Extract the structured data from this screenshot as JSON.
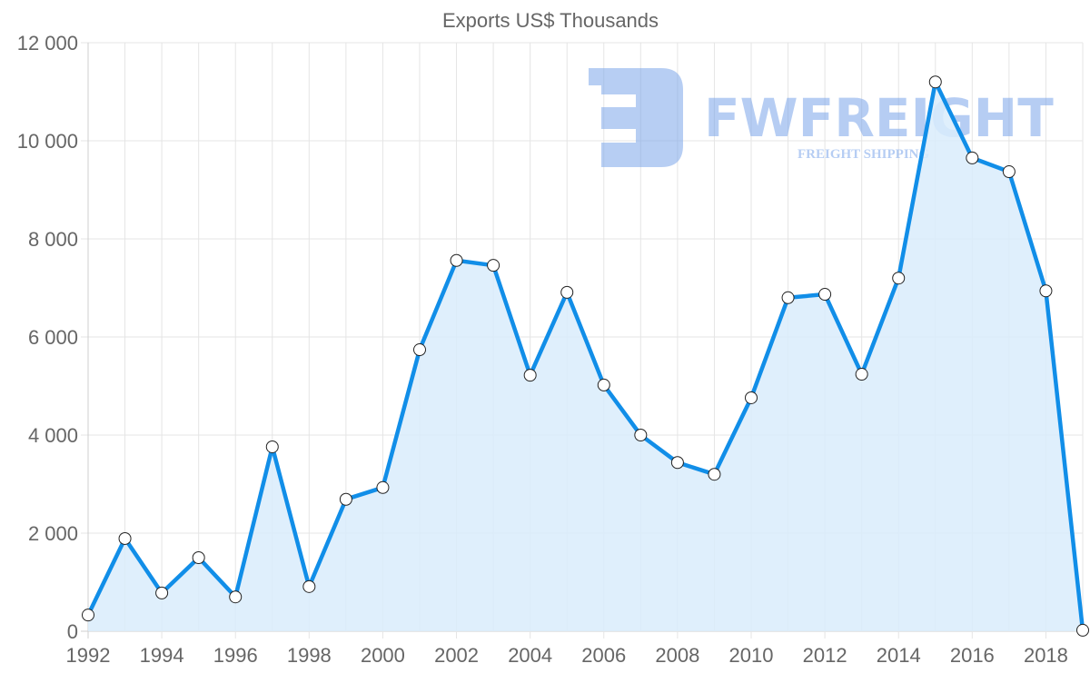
{
  "chart_data": {
    "type": "area",
    "title": "Exports US$ Thousands",
    "xlabel": "",
    "ylabel": "",
    "ylim": [
      0,
      12000
    ],
    "y_ticks": [
      "0",
      "2 000",
      "4 000",
      "6 000",
      "8 000",
      "10 000",
      "12 000"
    ],
    "x_tick_labels": [
      "1992",
      "1994",
      "1996",
      "1998",
      "2000",
      "2002",
      "2004",
      "2006",
      "2008",
      "2010",
      "2012",
      "2014",
      "2016",
      "2018"
    ],
    "grid": true,
    "legend": "none",
    "x": [
      1992,
      1993,
      1994,
      1995,
      1996,
      1997,
      1998,
      1999,
      2000,
      2001,
      2002,
      2003,
      2004,
      2005,
      2006,
      2007,
      2008,
      2009,
      2010,
      2011,
      2012,
      2013,
      2014,
      2015,
      2016,
      2017,
      2018,
      2019
    ],
    "series": [
      {
        "name": "Exports US$ Thousands",
        "color": "#118ee8",
        "fill": "#d9ecfc",
        "values": [
          330,
          1890,
          780,
          1500,
          700,
          3760,
          910,
          2690,
          2930,
          5740,
          7560,
          7460,
          5220,
          6910,
          5020,
          4000,
          3440,
          3200,
          4760,
          6800,
          6870,
          5240,
          7200,
          11200,
          9650,
          9370,
          6940,
          20
        ]
      }
    ]
  },
  "watermark": {
    "brand": "FWFREIGHT",
    "tagline": "FREIGHT SHIPPING",
    "color": "#7ba5ea"
  }
}
